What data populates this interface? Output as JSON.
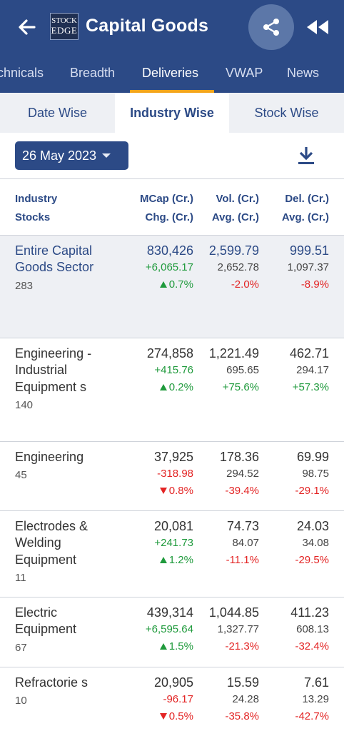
{
  "app": {
    "title": "Capital Goods",
    "logo_line1": "STOCK",
    "logo_line2": "EDGE",
    "brand_color": "#2c4a86",
    "accent_color": "#f3a51b"
  },
  "tabs": [
    {
      "label": "chnicals",
      "active": false
    },
    {
      "label": "Breadth",
      "active": false
    },
    {
      "label": "Deliveries",
      "active": true
    },
    {
      "label": "VWAP",
      "active": false
    },
    {
      "label": "News",
      "active": false
    }
  ],
  "subtabs": [
    {
      "label": "Date Wise",
      "active": false
    },
    {
      "label": "Industry Wise",
      "active": true
    },
    {
      "label": "Stock Wise",
      "active": false
    }
  ],
  "date_selector": {
    "value": "26 May 2023"
  },
  "table": {
    "headers": {
      "col0": [
        "Industry",
        "Stocks"
      ],
      "col1": [
        "MCap (Cr.)",
        "Chg. (Cr.)"
      ],
      "col2": [
        "Vol. (Cr.)",
        "Avg. (Cr.)"
      ],
      "col3": [
        "Del. (Cr.)",
        "Avg. (Cr.)"
      ]
    },
    "rows": [
      {
        "name": "Entire Capital Goods Sector",
        "count": "283",
        "selected": true,
        "mcap": "830,426",
        "chg": "+6,065.17",
        "chg_dir": "up",
        "chg_pct": "0.7%",
        "vol": "2,599.79",
        "vol_avg": "2,652.78",
        "vol_pct": "-2.0%",
        "vol_dir": "down",
        "del": "999.51",
        "del_avg": "1,097.37",
        "del_pct": "-8.9%",
        "del_dir": "down"
      },
      {
        "name": "Engineering - Industrial Equipment s",
        "count": "140",
        "selected": false,
        "mcap": "274,858",
        "chg": "+415.76",
        "chg_dir": "up",
        "chg_pct": "0.2%",
        "vol": "1,221.49",
        "vol_avg": "695.65",
        "vol_pct": "+75.6%",
        "vol_dir": "up",
        "del": "462.71",
        "del_avg": "294.17",
        "del_pct": "+57.3%",
        "del_dir": "up"
      },
      {
        "name": "Engineering",
        "count": "45",
        "selected": false,
        "mcap": "37,925",
        "chg": "-318.98",
        "chg_dir": "down",
        "chg_pct": "0.8%",
        "vol": "178.36",
        "vol_avg": "294.52",
        "vol_pct": "-39.4%",
        "vol_dir": "down",
        "del": "69.99",
        "del_avg": "98.75",
        "del_pct": "-29.1%",
        "del_dir": "down"
      },
      {
        "name": "Electrodes & Welding Equipment",
        "count": "11",
        "selected": false,
        "mcap": "20,081",
        "chg": "+241.73",
        "chg_dir": "up",
        "chg_pct": "1.2%",
        "vol": "74.73",
        "vol_avg": "84.07",
        "vol_pct": "-11.1%",
        "vol_dir": "down",
        "del": "24.03",
        "del_avg": "34.08",
        "del_pct": "-29.5%",
        "del_dir": "down"
      },
      {
        "name": "Electric Equipment",
        "count": "67",
        "selected": false,
        "mcap": "439,314",
        "chg": "+6,595.64",
        "chg_dir": "up",
        "chg_pct": "1.5%",
        "vol": "1,044.85",
        "vol_avg": "1,327.77",
        "vol_pct": "-21.3%",
        "vol_dir": "down",
        "del": "411.23",
        "del_avg": "608.13",
        "del_pct": "-32.4%",
        "del_dir": "down"
      },
      {
        "name": "Refractorie s",
        "count": "10",
        "selected": false,
        "mcap": "20,905",
        "chg": "-96.17",
        "chg_dir": "down",
        "chg_pct": "0.5%",
        "vol": "15.59",
        "vol_avg": "24.28",
        "vol_pct": "-35.8%",
        "vol_dir": "down",
        "del": "7.61",
        "del_avg": "13.29",
        "del_pct": "-42.7%",
        "del_dir": "down"
      }
    ]
  }
}
